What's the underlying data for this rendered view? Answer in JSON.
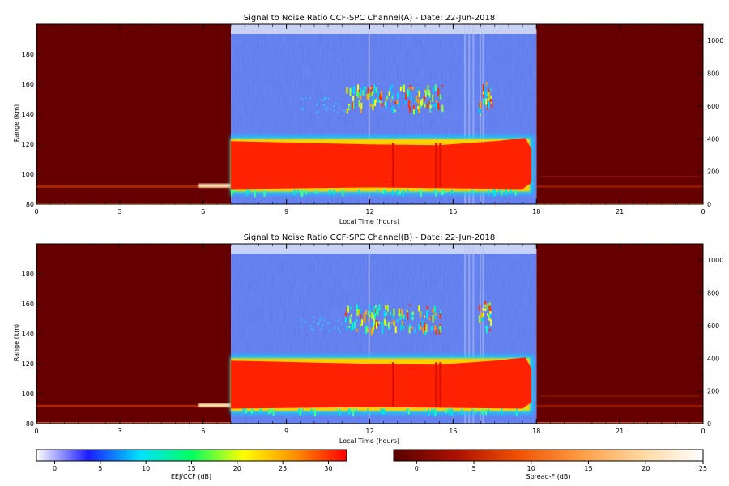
{
  "colors": {
    "day_background": "#5a78ea",
    "day_band_top": "#c8d2f4",
    "strong_echo": "#ff2200",
    "night_background": "#660000",
    "night_echo": "#ffe0b0"
  },
  "xaxis": {
    "label": "Local Time (hours)",
    "ticks": [
      "0",
      "3",
      "6",
      "9",
      "12",
      "15",
      "18",
      "21",
      "0"
    ],
    "range": [
      0,
      24
    ]
  },
  "ylabel": "Range (km)",
  "yticks": [
    "80",
    "100",
    "120",
    "140",
    "160",
    "180"
  ],
  "yrange": [
    80,
    200
  ],
  "y2ticks": [
    "0",
    "200",
    "400",
    "600",
    "800",
    "1000"
  ],
  "y2range": [
    0,
    1100
  ],
  "chart_data": [
    {
      "type": "heatmap",
      "title": "Signal to Noise Ratio CCF-SPC Channel(A) - Date: 22-Jun-2018",
      "day_window_hours": [
        7,
        18
      ],
      "echo_layer_km": [
        90,
        122
      ],
      "scattered_echoes_km": [
        143,
        160
      ],
      "night_echo_km": 92
    },
    {
      "type": "heatmap",
      "title": "Signal to Noise Ratio CCF-SPC Channel(B) - Date: 22-Jun-2018",
      "day_window_hours": [
        7,
        18
      ],
      "echo_layer_km": [
        90,
        122
      ],
      "scattered_echoes_km": [
        143,
        160
      ],
      "night_echo_km": 92
    }
  ],
  "colorbars": [
    {
      "label": "EEJ/CCF (dB)",
      "ticks": [
        "0",
        "5",
        "10",
        "15",
        "20",
        "25",
        "30"
      ],
      "range": [
        -2,
        32
      ],
      "stops": [
        "#ffffff",
        "#1c1cff",
        "#00e0ff",
        "#00ff60",
        "#ffff00",
        "#ff9000",
        "#ff0000"
      ]
    },
    {
      "label": "Spread-F (dB)",
      "ticks": [
        "0",
        "5",
        "10",
        "15",
        "20",
        "25"
      ],
      "range": [
        -2,
        25
      ],
      "stops": [
        "#5a0000",
        "#aa1000",
        "#f05000",
        "#ff9a40",
        "#ffd8a0",
        "#ffffff"
      ]
    }
  ]
}
